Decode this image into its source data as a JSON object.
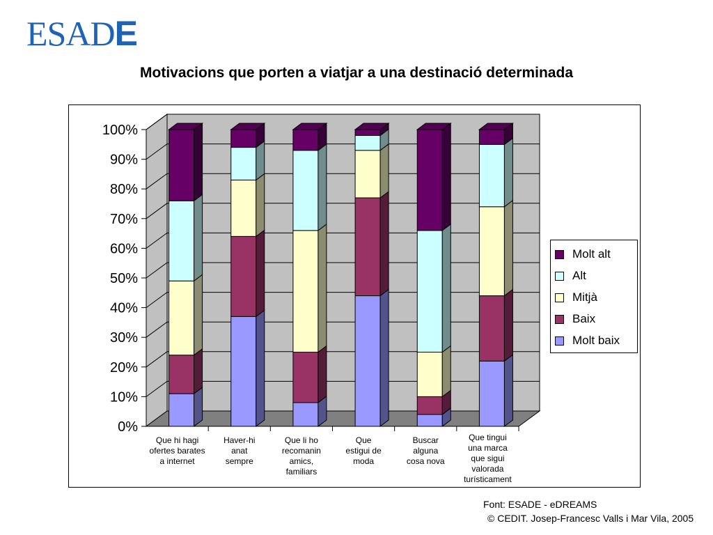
{
  "logo": {
    "main": "ESAD",
    "last": "E"
  },
  "colors": {
    "molt_alt": "#660066",
    "alt": "#ccffff",
    "mitja": "#ffffcc",
    "baix": "#993366",
    "molt_baix": "#9999ff",
    "wall": "#c0c0c0",
    "floor": "#808080"
  },
  "footer": {
    "source": "Font: ESADE - eDREAMS",
    "copyright": "© CEDIT. Josep-Francesc Valls i Mar Vila, 2005"
  },
  "chart_data": {
    "type": "bar",
    "stacked": true,
    "percent": true,
    "title": "Motivacions que porten a viatjar a una destinació determinada",
    "ylim": [
      0,
      100
    ],
    "yticks": [
      "0%",
      "10%",
      "20%",
      "30%",
      "40%",
      "50%",
      "60%",
      "70%",
      "80%",
      "90%",
      "100%"
    ],
    "grid": true,
    "legend_position": "right",
    "categories": [
      [
        "Que hi hagi",
        "ofertes barates",
        "a internet"
      ],
      [
        "Haver-hi",
        "anat",
        "sempre"
      ],
      [
        "Que li ho",
        "recomanin",
        "amics,",
        "familiars"
      ],
      [
        "Que",
        "estigui de",
        "moda"
      ],
      [
        "Buscar",
        "alguna",
        "cosa nova"
      ],
      [
        "Que tingui",
        "una marca",
        "que sigui",
        "valorada",
        "turísticament"
      ]
    ],
    "series": [
      {
        "name": "Molt baix",
        "color": "#9999ff",
        "values": [
          11,
          37,
          8,
          44,
          4,
          22
        ]
      },
      {
        "name": "Baix",
        "color": "#993366",
        "values": [
          13,
          27,
          17,
          33,
          6,
          22
        ]
      },
      {
        "name": "Mitjà",
        "color": "#ffffcc",
        "values": [
          25,
          19,
          41,
          16,
          15,
          30
        ]
      },
      {
        "name": "Alt",
        "color": "#ccffff",
        "values": [
          27,
          11,
          27,
          5,
          41,
          21
        ]
      },
      {
        "name": "Molt alt",
        "color": "#660066",
        "values": [
          24,
          6,
          7,
          2,
          34,
          5
        ]
      }
    ],
    "legend_order": [
      "Molt alt",
      "Alt",
      "Mitjà",
      "Baix",
      "Molt baix"
    ]
  }
}
